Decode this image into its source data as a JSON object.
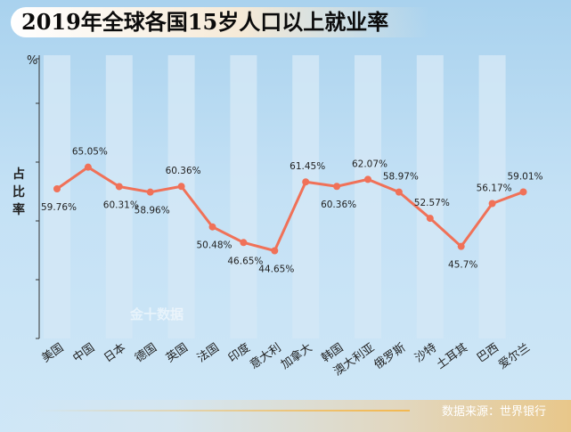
{
  "page": {
    "title": "2019年全球各国15岁人口以上就业率",
    "source": "数据来源：世界银行",
    "watermark": "金十数据"
  },
  "colors": {
    "line": "#f07158",
    "stripe": "#d3e8f6",
    "axis": "#333333",
    "label": "#222222"
  },
  "chart_data": {
    "type": "line",
    "title": "2019年全球各国15岁人口以上就业率",
    "ylabel": "占比率",
    "yunit": "%",
    "xlabel": "",
    "grid": false,
    "categories": [
      "美国",
      "中国",
      "日本",
      "德国",
      "英国",
      "法国",
      "印度",
      "意大利",
      "加拿大",
      "韩国",
      "澳大利亚",
      "俄罗斯",
      "沙特",
      "土耳其",
      "巴西",
      "爱尔兰"
    ],
    "series": [
      {
        "values": [
          59.76,
          65.05,
          60.31,
          58.96,
          60.36,
          50.48,
          46.65,
          44.65,
          61.45,
          60.36,
          62.07,
          58.97,
          52.57,
          45.7,
          56.17,
          59.01
        ],
        "data_labels": [
          "59.76%",
          "65.05%",
          "60.31%",
          "58.96%",
          "60.36%",
          "50.48%",
          "46.65%",
          "44.65%",
          "61.45%",
          "60.36%",
          "62.07%",
          "58.97%",
          "52.57%",
          "45.7%",
          "56.17%",
          "59.01%"
        ]
      }
    ]
  }
}
